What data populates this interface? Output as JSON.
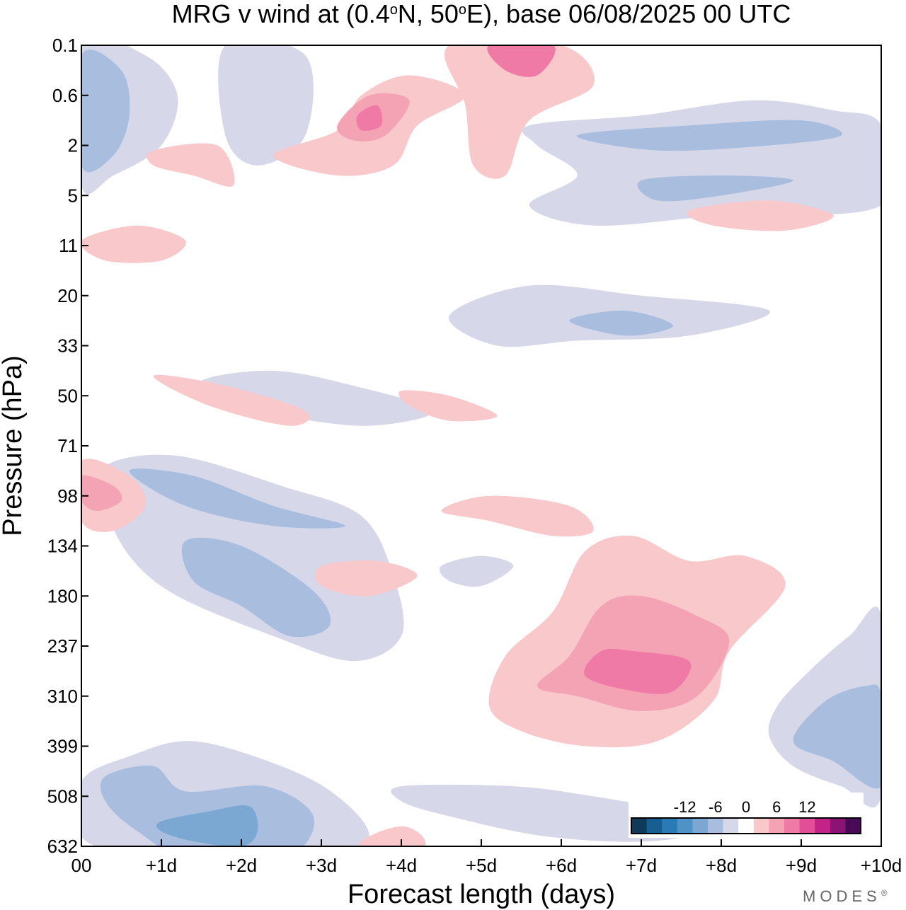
{
  "chart_data": {
    "type": "heatmap",
    "title_prefix": "MRG v wind at (0.4",
    "title_lat_unit": "o",
    "title_lat": "N, 50",
    "title_lon_unit": "o",
    "title_suffix": "E),  base 06/08/2025  00 UTC",
    "xlabel": "Forecast length (days)",
    "ylabel": "Pressure (hPa)",
    "x_ticks": [
      "00",
      "+1d",
      "+2d",
      "+3d",
      "+4d",
      "+5d",
      "+6d",
      "+7d",
      "+8d",
      "+9d",
      "+10d"
    ],
    "y_ticks": [
      "0.1",
      "0.6",
      "2",
      "5",
      "11",
      "20",
      "33",
      "50",
      "71",
      "98",
      "134",
      "180",
      "237",
      "310",
      "399",
      "508",
      "632"
    ],
    "xlim": [
      0,
      10
    ],
    "colorbar": {
      "labels": [
        "-12",
        "-6",
        "0",
        "6",
        "12"
      ],
      "colors": [
        "#0f3a5a",
        "#175f90",
        "#2a7ab5",
        "#4f92c6",
        "#7aa8d2",
        "#a9bedf",
        "#d6d8ea",
        "#ffffff",
        "#f8c8cb",
        "#f4a3b5",
        "#ef7aa6",
        "#e34e98",
        "#c32389",
        "#8a1473",
        "#4b0a57"
      ]
    },
    "contour_regions": [
      {
        "level": -3,
        "points": [
          [
            0,
            14.7
          ],
          [
            0.6,
            14.2
          ],
          [
            1.4,
            13.9
          ],
          [
            2.5,
            14.4
          ],
          [
            3.2,
            15.0
          ],
          [
            3.6,
            15.8
          ],
          [
            3.2,
            16.5
          ],
          [
            2.4,
            16.9
          ],
          [
            1.4,
            16.8
          ],
          [
            0.6,
            16.2
          ],
          [
            0,
            15.8
          ]
        ]
      },
      {
        "level": -6,
        "points": [
          [
            0.3,
            14.6
          ],
          [
            0.9,
            14.4
          ],
          [
            1.3,
            14.9
          ],
          [
            2.3,
            14.8
          ],
          [
            2.9,
            15.4
          ],
          [
            2.6,
            16.2
          ],
          [
            1.5,
            16.4
          ],
          [
            0.7,
            15.7
          ],
          [
            0.3,
            15.1
          ]
        ]
      },
      {
        "level": -9,
        "points": [
          [
            1.0,
            15.5
          ],
          [
            1.6,
            15.3
          ],
          [
            2.1,
            15.2
          ],
          [
            2.2,
            15.7
          ],
          [
            2.0,
            16.0
          ],
          [
            1.4,
            15.9
          ],
          [
            1.0,
            15.7
          ]
        ]
      },
      {
        "level": -3,
        "points": [
          [
            0.3,
            8.4
          ],
          [
            1.2,
            8.2
          ],
          [
            2.5,
            8.8
          ],
          [
            3.5,
            9.4
          ],
          [
            3.9,
            10.6
          ],
          [
            4.0,
            11.8
          ],
          [
            3.4,
            12.3
          ],
          [
            2.4,
            11.8
          ],
          [
            1.2,
            11.0
          ],
          [
            0.6,
            10.2
          ],
          [
            0.3,
            9.2
          ]
        ]
      },
      {
        "level": -6,
        "points": [
          [
            0.6,
            8.5
          ],
          [
            1.4,
            8.6
          ],
          [
            2.4,
            9.2
          ],
          [
            3.3,
            9.6
          ],
          [
            2.4,
            9.6
          ],
          [
            1.3,
            9.2
          ]
        ]
      },
      {
        "level": -6,
        "points": [
          [
            1.3,
            9.9
          ],
          [
            2.0,
            10.0
          ],
          [
            2.9,
            10.9
          ],
          [
            3.1,
            11.6
          ],
          [
            2.6,
            11.8
          ],
          [
            2.0,
            11.2
          ],
          [
            1.4,
            10.7
          ]
        ]
      },
      {
        "level": 3,
        "points": [
          [
            0,
            8.3
          ],
          [
            0.6,
            8.6
          ],
          [
            0.8,
            9.2
          ],
          [
            0.4,
            9.7
          ],
          [
            0,
            9.5
          ]
        ]
      },
      {
        "level": 6,
        "points": [
          [
            0,
            8.6
          ],
          [
            0.4,
            8.8
          ],
          [
            0.5,
            9.1
          ],
          [
            0.2,
            9.3
          ],
          [
            0,
            9.1
          ]
        ]
      },
      {
        "level": 3,
        "points": [
          [
            5.1,
            13.2
          ],
          [
            5.3,
            12.2
          ],
          [
            5.9,
            11.3
          ],
          [
            6.3,
            10.1
          ],
          [
            6.9,
            9.8
          ],
          [
            7.6,
            10.3
          ],
          [
            8.3,
            10.2
          ],
          [
            8.8,
            10.8
          ],
          [
            8.1,
            12.1
          ],
          [
            7.9,
            13.1
          ],
          [
            7.2,
            13.9
          ],
          [
            6.3,
            14.0
          ],
          [
            5.5,
            13.7
          ]
        ]
      },
      {
        "level": 6,
        "points": [
          [
            5.7,
            12.8
          ],
          [
            6.1,
            12.2
          ],
          [
            6.5,
            11.2
          ],
          [
            7.0,
            11.0
          ],
          [
            7.7,
            11.4
          ],
          [
            8.1,
            11.9
          ],
          [
            7.7,
            13.0
          ],
          [
            7.0,
            13.3
          ],
          [
            6.2,
            13.0
          ]
        ]
      },
      {
        "level": 9,
        "points": [
          [
            6.3,
            12.6
          ],
          [
            6.5,
            12.1
          ],
          [
            6.9,
            12.1
          ],
          [
            7.6,
            12.3
          ],
          [
            7.4,
            12.9
          ],
          [
            6.9,
            12.9
          ]
        ]
      },
      {
        "level": 3,
        "points": [
          [
            4.5,
            9.3
          ],
          [
            5.1,
            9.0
          ],
          [
            6.1,
            9.2
          ],
          [
            6.4,
            9.7
          ],
          [
            5.9,
            9.8
          ],
          [
            5.1,
            9.5
          ]
        ]
      },
      {
        "level": -3,
        "points": [
          [
            8.7,
            13.2
          ],
          [
            9.1,
            12.5
          ],
          [
            9.6,
            11.8
          ],
          [
            10,
            11.4
          ],
          [
            10,
            15.0
          ],
          [
            9.5,
            14.8
          ],
          [
            8.9,
            14.4
          ],
          [
            8.6,
            13.8
          ]
        ]
      },
      {
        "level": -6,
        "points": [
          [
            8.9,
            13.9
          ],
          [
            9.3,
            13.1
          ],
          [
            9.8,
            12.8
          ],
          [
            10,
            13.0
          ],
          [
            10,
            14.8
          ],
          [
            9.4,
            14.3
          ]
        ]
      },
      {
        "level": -3,
        "points": [
          [
            4.0,
            14.8
          ],
          [
            5.4,
            14.8
          ],
          [
            6.4,
            15.0
          ],
          [
            7.4,
            15.3
          ],
          [
            8.0,
            15.6
          ],
          [
            7.1,
            15.9
          ],
          [
            5.8,
            15.8
          ],
          [
            4.6,
            15.4
          ],
          [
            4.0,
            15.1
          ]
        ]
      },
      {
        "level": 3,
        "points": [
          [
            3.5,
            15.9
          ],
          [
            4.0,
            15.6
          ],
          [
            4.3,
            15.9
          ],
          [
            4.1,
            16.4
          ],
          [
            3.5,
            16.3
          ]
        ]
      },
      {
        "level": 3,
        "points": [
          [
            3.0,
            10.4
          ],
          [
            3.7,
            10.3
          ],
          [
            4.2,
            10.6
          ],
          [
            3.6,
            11.0
          ],
          [
            3.0,
            10.8
          ]
        ]
      },
      {
        "level": -3,
        "points": [
          [
            4.5,
            10.4
          ],
          [
            5.0,
            10.2
          ],
          [
            5.4,
            10.4
          ],
          [
            5.0,
            10.8
          ],
          [
            4.6,
            10.7
          ]
        ]
      },
      {
        "level": -3,
        "points": [
          [
            0,
            0.0
          ],
          [
            0.8,
            0.2
          ],
          [
            1.2,
            1.0
          ],
          [
            1.0,
            2.0
          ],
          [
            0.4,
            2.6
          ],
          [
            0,
            2.8
          ]
        ]
      },
      {
        "level": -6,
        "points": [
          [
            0,
            0.2
          ],
          [
            0.5,
            0.5
          ],
          [
            0.6,
            1.4
          ],
          [
            0.4,
            2.2
          ],
          [
            0,
            2.4
          ]
        ]
      },
      {
        "level": -3,
        "points": [
          [
            1.8,
            0.0
          ],
          [
            2.8,
            0.2
          ],
          [
            2.8,
            1.8
          ],
          [
            2.2,
            2.4
          ],
          [
            1.8,
            1.8
          ]
        ]
      },
      {
        "level": 3,
        "points": [
          [
            2.4,
            2.2
          ],
          [
            3.2,
            1.7
          ],
          [
            3.5,
            1.0
          ],
          [
            4.1,
            0.6
          ],
          [
            4.8,
            1.0
          ],
          [
            4.2,
            1.6
          ],
          [
            3.9,
            2.4
          ],
          [
            3.2,
            2.6
          ]
        ]
      },
      {
        "level": 6,
        "points": [
          [
            3.2,
            1.6
          ],
          [
            3.6,
            1.0
          ],
          [
            4.1,
            1.1
          ],
          [
            3.8,
            1.8
          ],
          [
            3.4,
            1.9
          ]
        ]
      },
      {
        "level": 9,
        "points": [
          [
            3.45,
            1.4
          ],
          [
            3.7,
            1.2
          ],
          [
            3.75,
            1.6
          ],
          [
            3.5,
            1.7
          ]
        ]
      },
      {
        "level": 3,
        "points": [
          [
            4.6,
            0.0
          ],
          [
            6.0,
            0.0
          ],
          [
            6.4,
            0.8
          ],
          [
            5.6,
            1.5
          ],
          [
            5.3,
            2.6
          ],
          [
            4.9,
            2.4
          ],
          [
            4.8,
            1.2
          ]
        ]
      },
      {
        "level": 9,
        "points": [
          [
            5.1,
            0.0
          ],
          [
            5.9,
            0.0
          ],
          [
            5.7,
            0.6
          ],
          [
            5.3,
            0.5
          ]
        ]
      },
      {
        "level": -3,
        "points": [
          [
            5.6,
            1.6
          ],
          [
            7.0,
            1.4
          ],
          [
            8.4,
            1.1
          ],
          [
            9.4,
            1.3
          ],
          [
            10,
            1.6
          ],
          [
            10,
            3.2
          ],
          [
            8.0,
            3.4
          ],
          [
            6.4,
            3.6
          ],
          [
            5.6,
            3.2
          ],
          [
            6.2,
            2.6
          ],
          [
            5.7,
            2.0
          ]
        ]
      },
      {
        "level": -6,
        "points": [
          [
            6.2,
            1.8
          ],
          [
            7.6,
            1.6
          ],
          [
            9.0,
            1.5
          ],
          [
            9.5,
            1.8
          ],
          [
            8.6,
            2.0
          ],
          [
            7.2,
            2.1
          ]
        ]
      },
      {
        "level": -6,
        "points": [
          [
            7.0,
            2.7
          ],
          [
            8.0,
            2.6
          ],
          [
            8.9,
            2.7
          ],
          [
            8.0,
            3.0
          ],
          [
            7.2,
            3.1
          ]
        ]
      },
      {
        "level": -3,
        "points": [
          [
            4.6,
            5.4
          ],
          [
            5.6,
            4.8
          ],
          [
            7.0,
            5.0
          ],
          [
            8.6,
            5.3
          ],
          [
            7.6,
            5.8
          ],
          [
            6.2,
            5.9
          ],
          [
            5.2,
            6.0
          ]
        ]
      },
      {
        "level": -6,
        "points": [
          [
            6.1,
            5.5
          ],
          [
            6.8,
            5.3
          ],
          [
            7.4,
            5.6
          ],
          [
            6.8,
            5.8
          ]
        ]
      },
      {
        "level": 3,
        "points": [
          [
            0,
            3.9
          ],
          [
            0.7,
            3.6
          ],
          [
            1.3,
            3.9
          ],
          [
            1.0,
            4.3
          ],
          [
            0.3,
            4.3
          ]
        ]
      },
      {
        "level": 3,
        "points": [
          [
            0.9,
            2.1
          ],
          [
            1.7,
            2.0
          ],
          [
            1.9,
            2.8
          ],
          [
            1.4,
            2.6
          ],
          [
            0.9,
            2.4
          ]
        ]
      },
      {
        "level": -3,
        "points": [
          [
            1.5,
            6.7
          ],
          [
            2.4,
            6.5
          ],
          [
            3.4,
            6.8
          ],
          [
            4.4,
            7.3
          ],
          [
            3.6,
            7.6
          ],
          [
            2.5,
            7.4
          ],
          [
            1.8,
            7.1
          ]
        ]
      },
      {
        "level": 3,
        "points": [
          [
            0.9,
            6.6
          ],
          [
            1.8,
            6.8
          ],
          [
            2.8,
            7.3
          ],
          [
            2.6,
            7.6
          ],
          [
            1.6,
            7.2
          ]
        ]
      },
      {
        "level": 3,
        "points": [
          [
            7.6,
            3.3
          ],
          [
            8.6,
            3.1
          ],
          [
            9.4,
            3.4
          ],
          [
            8.8,
            3.7
          ],
          [
            7.9,
            3.6
          ]
        ]
      },
      {
        "level": 3,
        "points": [
          [
            4.0,
            6.9
          ],
          [
            4.6,
            7.0
          ],
          [
            5.2,
            7.4
          ],
          [
            4.6,
            7.5
          ],
          [
            4.1,
            7.2
          ]
        ]
      }
    ]
  },
  "branding": {
    "name": "MODES",
    "mark": "®"
  }
}
